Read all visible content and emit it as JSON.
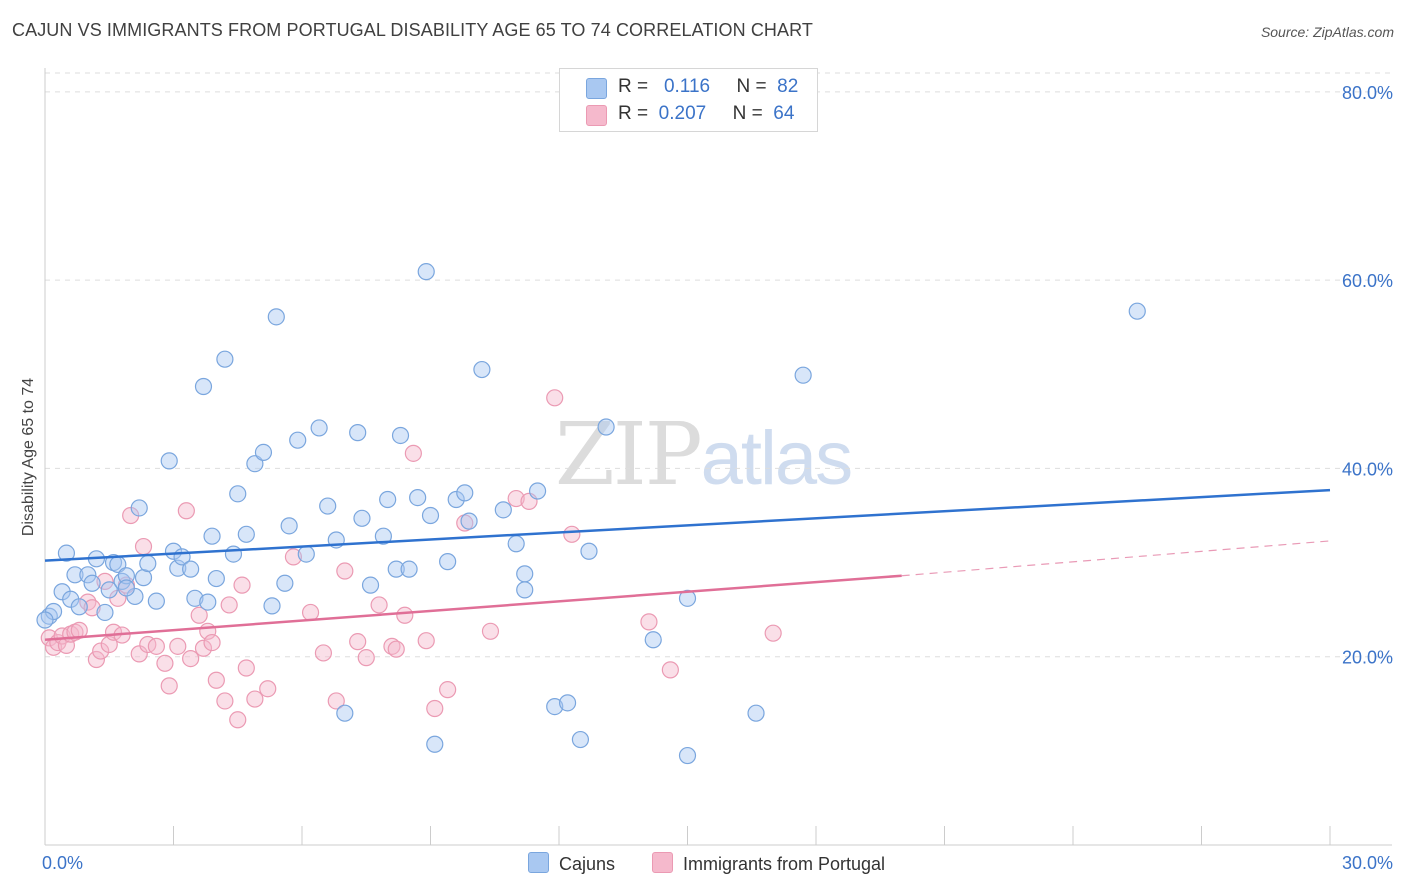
{
  "title": "CAJUN VS IMMIGRANTS FROM PORTUGAL DISABILITY AGE 65 TO 74 CORRELATION CHART",
  "source": "Source: ZipAtlas.com",
  "watermark": {
    "zip": "ZIP",
    "atlas": "atlas"
  },
  "legend_top": [
    {
      "r_label": "R =",
      "r_value": "0.116",
      "n_label": "N =",
      "n_value": "82"
    },
    {
      "r_label": "R =",
      "r_value": "0.207",
      "n_label": "N =",
      "n_value": "64"
    }
  ],
  "legend_bottom": [
    "Cajuns",
    "Immigrants from Portugal"
  ],
  "colors": {
    "cajun_fill": "#a9c8f1",
    "cajun_stroke": "#7aa6de",
    "cajun_line": "#2f72cf",
    "portugal_fill": "#f5b9cc",
    "portugal_stroke": "#eb9ab3",
    "portugal_line": "#e06f97",
    "axis_label": "#3b73c8",
    "grid": "#dddddd"
  },
  "chart_data": {
    "type": "scatter",
    "title": "CAJUN VS IMMIGRANTS FROM PORTUGAL DISABILITY AGE 65 TO 74 CORRELATION CHART",
    "xlabel": "",
    "ylabel": "Disability Age 65 to 74",
    "xlim": [
      0,
      30
    ],
    "ylim": [
      0,
      82
    ],
    "x_tick_labels": [
      "0.0%",
      "30.0%"
    ],
    "y_ticks": [
      20,
      40,
      60,
      80
    ],
    "y_tick_labels": [
      "20.0%",
      "40.0%",
      "60.0%",
      "80.0%"
    ],
    "grid": true,
    "legend_position": "top-center",
    "series": [
      {
        "name": "Cajuns",
        "r": 0.116,
        "n": 82,
        "trend": {
          "x": [
            0,
            30
          ],
          "y": [
            30.2,
            37.7
          ]
        },
        "points": [
          [
            0.1,
            24.3
          ],
          [
            0.2,
            24.8
          ],
          [
            0.4,
            26.9
          ],
          [
            0.5,
            31.0
          ],
          [
            0.6,
            26.1
          ],
          [
            0.7,
            28.7
          ],
          [
            0.8,
            25.3
          ],
          [
            1.0,
            28.7
          ],
          [
            1.1,
            27.8
          ],
          [
            1.2,
            30.4
          ],
          [
            1.4,
            24.7
          ],
          [
            1.5,
            27.1
          ],
          [
            1.6,
            30.0
          ],
          [
            1.7,
            29.8
          ],
          [
            1.8,
            28.0
          ],
          [
            1.9,
            28.6
          ],
          [
            2.1,
            26.4
          ],
          [
            2.2,
            35.8
          ],
          [
            2.3,
            28.4
          ],
          [
            2.4,
            29.9
          ],
          [
            2.6,
            25.9
          ],
          [
            2.9,
            40.8
          ],
          [
            3.0,
            31.2
          ],
          [
            3.1,
            29.4
          ],
          [
            3.2,
            30.6
          ],
          [
            3.4,
            29.3
          ],
          [
            3.5,
            26.2
          ],
          [
            3.7,
            48.7
          ],
          [
            3.8,
            25.8
          ],
          [
            3.9,
            32.8
          ],
          [
            4.0,
            28.3
          ],
          [
            4.2,
            51.6
          ],
          [
            4.4,
            30.9
          ],
          [
            4.5,
            37.3
          ],
          [
            4.7,
            33.0
          ],
          [
            4.9,
            40.5
          ],
          [
            5.1,
            41.7
          ],
          [
            5.3,
            25.4
          ],
          [
            5.4,
            56.1
          ],
          [
            5.6,
            27.8
          ],
          [
            5.7,
            33.9
          ],
          [
            5.9,
            43.0
          ],
          [
            6.1,
            30.9
          ],
          [
            6.4,
            44.3
          ],
          [
            6.6,
            36.0
          ],
          [
            6.8,
            32.4
          ],
          [
            7.0,
            14.0
          ],
          [
            7.3,
            43.8
          ],
          [
            7.4,
            34.7
          ],
          [
            7.6,
            27.6
          ],
          [
            7.9,
            32.8
          ],
          [
            8.0,
            36.7
          ],
          [
            8.2,
            29.3
          ],
          [
            8.3,
            43.5
          ],
          [
            8.5,
            29.3
          ],
          [
            8.7,
            36.9
          ],
          [
            8.9,
            60.9
          ],
          [
            9.0,
            35.0
          ],
          [
            9.1,
            10.7
          ],
          [
            9.4,
            30.1
          ],
          [
            9.6,
            36.7
          ],
          [
            9.8,
            37.4
          ],
          [
            9.9,
            34.4
          ],
          [
            10.2,
            50.5
          ],
          [
            10.7,
            35.6
          ],
          [
            11.0,
            32.0
          ],
          [
            11.2,
            27.1
          ],
          [
            11.2,
            28.8
          ],
          [
            11.5,
            37.6
          ],
          [
            11.9,
            14.7
          ],
          [
            12.2,
            15.1
          ],
          [
            12.5,
            11.2
          ],
          [
            12.7,
            31.2
          ],
          [
            13.1,
            44.4
          ],
          [
            14.2,
            21.8
          ],
          [
            15.0,
            26.2
          ],
          [
            15.0,
            9.5
          ],
          [
            16.6,
            14.0
          ],
          [
            17.7,
            49.9
          ],
          [
            25.5,
            56.7
          ],
          [
            0.0,
            23.9
          ],
          [
            1.9,
            27.3
          ]
        ]
      },
      {
        "name": "Immigrants from Portugal",
        "r": 0.207,
        "n": 64,
        "trend": {
          "x": [
            0,
            20
          ],
          "y": [
            21.8,
            28.6
          ],
          "dashed_x": [
            20,
            30
          ],
          "dashed_y": [
            28.6,
            32.3
          ]
        },
        "points": [
          [
            0.1,
            22.0
          ],
          [
            0.2,
            21.0
          ],
          [
            0.3,
            21.5
          ],
          [
            0.4,
            22.2
          ],
          [
            0.5,
            21.2
          ],
          [
            0.6,
            22.4
          ],
          [
            0.7,
            22.6
          ],
          [
            0.8,
            22.8
          ],
          [
            1.0,
            25.8
          ],
          [
            1.1,
            25.2
          ],
          [
            1.2,
            19.7
          ],
          [
            1.3,
            20.6
          ],
          [
            1.4,
            28.0
          ],
          [
            1.5,
            21.3
          ],
          [
            1.6,
            22.6
          ],
          [
            1.7,
            26.2
          ],
          [
            1.8,
            22.3
          ],
          [
            1.9,
            27.6
          ],
          [
            2.0,
            35.0
          ],
          [
            2.2,
            20.3
          ],
          [
            2.3,
            31.7
          ],
          [
            2.4,
            21.3
          ],
          [
            2.6,
            21.1
          ],
          [
            2.8,
            19.3
          ],
          [
            2.9,
            16.9
          ],
          [
            3.1,
            21.1
          ],
          [
            3.3,
            35.5
          ],
          [
            3.4,
            19.8
          ],
          [
            3.6,
            24.4
          ],
          [
            3.7,
            20.9
          ],
          [
            3.8,
            22.7
          ],
          [
            3.9,
            21.5
          ],
          [
            4.0,
            17.5
          ],
          [
            4.2,
            15.3
          ],
          [
            4.3,
            25.5
          ],
          [
            4.5,
            13.3
          ],
          [
            4.6,
            27.6
          ],
          [
            4.7,
            18.8
          ],
          [
            4.9,
            15.5
          ],
          [
            5.2,
            16.6
          ],
          [
            5.8,
            30.6
          ],
          [
            6.2,
            24.7
          ],
          [
            6.5,
            20.4
          ],
          [
            6.8,
            15.3
          ],
          [
            7.0,
            29.1
          ],
          [
            7.3,
            21.6
          ],
          [
            7.5,
            19.9
          ],
          [
            7.8,
            25.5
          ],
          [
            8.1,
            21.1
          ],
          [
            8.2,
            20.8
          ],
          [
            8.4,
            24.4
          ],
          [
            8.6,
            41.6
          ],
          [
            8.9,
            21.7
          ],
          [
            9.1,
            14.5
          ],
          [
            9.4,
            16.5
          ],
          [
            9.8,
            34.2
          ],
          [
            10.4,
            22.7
          ],
          [
            11.0,
            36.8
          ],
          [
            11.3,
            36.5
          ],
          [
            11.9,
            47.5
          ],
          [
            12.3,
            33.0
          ],
          [
            14.1,
            23.7
          ],
          [
            14.6,
            18.6
          ],
          [
            17.0,
            22.5
          ]
        ]
      }
    ]
  }
}
